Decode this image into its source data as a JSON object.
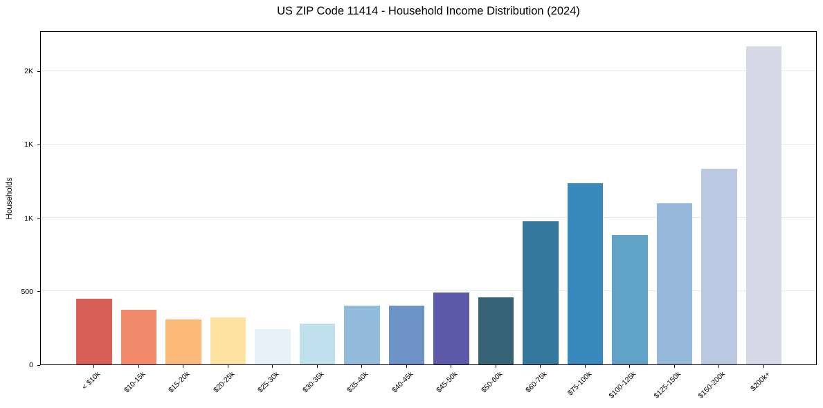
{
  "title": "US ZIP Code 11414 - Household Income Distribution (2024)",
  "colors": {
    "background": "#ffffff",
    "axis": "#000000",
    "grid": "#e8e8e8",
    "text": "#000000"
  },
  "chart_data": {
    "type": "bar",
    "title": "US ZIP Code 11414 - Household Income Distribution (2024)",
    "xlabel": "",
    "ylabel": "Households",
    "legend": "none",
    "grid": "horizontal",
    "ylim": [
      0,
      2273
    ],
    "yticks": [
      {
        "value": 0,
        "label": "0"
      },
      {
        "value": 500,
        "label": "500"
      },
      {
        "value": 1000,
        "label": "1K"
      },
      {
        "value": 1500,
        "label": "1K"
      },
      {
        "value": 2000,
        "label": "2K"
      }
    ],
    "categories": [
      "< $10k",
      "$10-15k",
      "$15-20k",
      "$20-25k",
      "$25-30k",
      "$30-35k",
      "$35-40k",
      "$40-45k",
      "$45-50k",
      "$50-60k",
      "$60-75k",
      "$75-100k",
      "$100-125k",
      "$125-150k",
      "$150-200k",
      "$200k+"
    ],
    "values": [
      447,
      370,
      306,
      322,
      240,
      280,
      400,
      398,
      490,
      455,
      975,
      1232,
      880,
      1095,
      1330,
      2165
    ],
    "bar_colors": [
      "#d75f57",
      "#f38a6b",
      "#fbba79",
      "#fde2a0",
      "#e6f2f8",
      "#bfe0ec",
      "#92bcda",
      "#6c93c3",
      "#5c5aa8",
      "#376376",
      "#35789e",
      "#388abc",
      "#60a3c6",
      "#95b8da",
      "#bac9e1",
      "#d7d9e7"
    ]
  }
}
